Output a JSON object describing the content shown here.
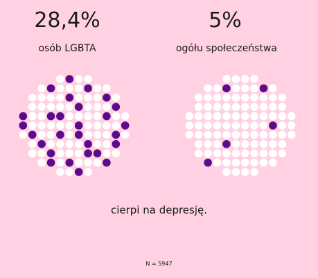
{
  "colors": {
    "background": "#ffd1e3",
    "highlight": "#5b0a8c",
    "base": "#ffffff"
  },
  "caption": "cierpi na depresję.",
  "sample_size": "N = 5947",
  "chart_data": [
    {
      "type": "dot-matrix",
      "value_label": "28,4%",
      "group_label": "osób LGBTA",
      "percent": 28.4,
      "total_dots": 100,
      "highlighted_dots": 28
    },
    {
      "type": "dot-matrix",
      "value_label": "5%",
      "group_label": "ogółu społeczeństwa",
      "percent": 5,
      "total_dots": 100,
      "highlighted_dots": 5
    }
  ]
}
